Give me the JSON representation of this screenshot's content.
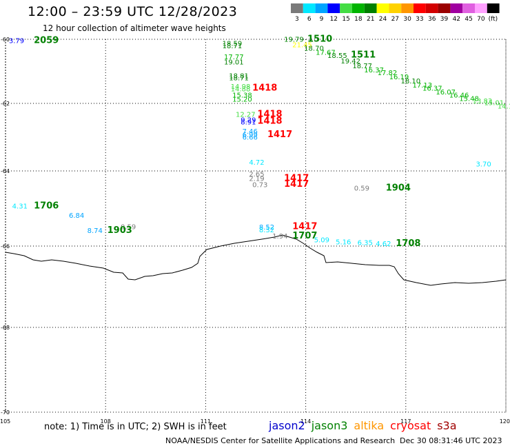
{
  "header": {
    "title": "12:00 – 23:59 UTC 12/28/2023",
    "subtitle": "12 hour collection of altimeter wave heights"
  },
  "color_scale": {
    "unit": "(ft)",
    "bins": [
      {
        "label": "3",
        "color": "#7a7a7a"
      },
      {
        "label": "6",
        "color": "#00e8ff"
      },
      {
        "label": "9",
        "color": "#00a4ff"
      },
      {
        "label": "12",
        "color": "#0000ff"
      },
      {
        "label": "15",
        "color": "#44dd44"
      },
      {
        "label": "18",
        "color": "#00b400"
      },
      {
        "label": "21",
        "color": "#008000"
      },
      {
        "label": "24",
        "color": "#ffff00"
      },
      {
        "label": "27",
        "color": "#ffd200"
      },
      {
        "label": "30",
        "color": "#ff9600"
      },
      {
        "label": "33",
        "color": "#ff0000"
      },
      {
        "label": "36",
        "color": "#d20000"
      },
      {
        "label": "39",
        "color": "#9a0000"
      },
      {
        "label": "42",
        "color": "#a000a0"
      },
      {
        "label": "45",
        "color": "#e060e0"
      },
      {
        "label": "70",
        "color": "#ffa0ff"
      },
      {
        "label": "",
        "color": "#000000"
      }
    ]
  },
  "axes": {
    "lon_ticks": [
      "105",
      "108",
      "111",
      "114",
      "117",
      "120"
    ],
    "lat_ticks": [
      "-60",
      "-62",
      "-64",
      "-66",
      "-68",
      "-70"
    ]
  },
  "observations": [
    {
      "text": "3.79",
      "color": "#0000ff",
      "lon": 105.1,
      "lat": -60.12
    },
    {
      "text": "2059",
      "color": "#008000",
      "lon": 105.85,
      "lat": -60.12,
      "bold": true
    },
    {
      "text": "18.59",
      "color": "#008000",
      "lon": 111.5,
      "lat": -60.2
    },
    {
      "text": "18.71",
      "color": "#008000",
      "lon": 111.5,
      "lat": -60.28
    },
    {
      "text": "17.77",
      "color": "#00b400",
      "lon": 111.55,
      "lat": -60.62
    },
    {
      "text": "19.01",
      "color": "#008000",
      "lon": 111.55,
      "lat": -60.78
    },
    {
      "text": "18.81",
      "color": "#008000",
      "lon": 111.7,
      "lat": -61.22
    },
    {
      "text": "18.71",
      "color": "#008000",
      "lon": 111.7,
      "lat": -61.28
    },
    {
      "text": "14.98",
      "color": "#44dd44",
      "lon": 111.75,
      "lat": -61.55
    },
    {
      "text": "14.88",
      "color": "#44dd44",
      "lon": 111.75,
      "lat": -61.62
    },
    {
      "text": "15.38",
      "color": "#00b400",
      "lon": 111.8,
      "lat": -61.82
    },
    {
      "text": "15.20",
      "color": "#00b400",
      "lon": 111.8,
      "lat": -61.95
    },
    {
      "text": "1418",
      "color": "#ff0000",
      "lon": 112.4,
      "lat": -61.6,
      "bold": true
    },
    {
      "text": "12.27",
      "color": "#44dd44",
      "lon": 111.9,
      "lat": -62.4
    },
    {
      "text": "1418",
      "color": "#ff0000",
      "lon": 112.55,
      "lat": -62.4,
      "bold": true
    },
    {
      "text": "9.29",
      "color": "#0000ff",
      "lon": 112.05,
      "lat": -62.56
    },
    {
      "text": "8.91",
      "color": "#0000ff",
      "lon": 112.05,
      "lat": -62.62
    },
    {
      "text": "1418",
      "color": "#ff0000",
      "lon": 112.55,
      "lat": -62.6,
      "bold": true
    },
    {
      "text": "7.46",
      "color": "#00a4ff",
      "lon": 112.1,
      "lat": -62.9
    },
    {
      "text": "6.99",
      "color": "#00a4ff",
      "lon": 112.1,
      "lat": -63.0
    },
    {
      "text": "6.66",
      "color": "#00a4ff",
      "lon": 112.1,
      "lat": -63.07
    },
    {
      "text": "1417",
      "color": "#ff0000",
      "lon": 112.85,
      "lat": -63.0,
      "bold": true
    },
    {
      "text": "4.72",
      "color": "#00e8ff",
      "lon": 112.3,
      "lat": -63.82
    },
    {
      "text": "2.65",
      "color": "#7a7a7a",
      "lon": 112.3,
      "lat": -64.15
    },
    {
      "text": "2.19",
      "color": "#7a7a7a",
      "lon": 112.3,
      "lat": -64.27
    },
    {
      "text": "1417",
      "color": "#ff0000",
      "lon": 113.35,
      "lat": -64.27,
      "bold": true
    },
    {
      "text": "0.73",
      "color": "#7a7a7a",
      "lon": 112.4,
      "lat": -64.43
    },
    {
      "text": "1417",
      "color": "#ff0000",
      "lon": 113.35,
      "lat": -64.42,
      "bold": true
    },
    {
      "text": "0.59",
      "color": "#7a7a7a",
      "lon": 115.45,
      "lat": -64.52
    },
    {
      "text": "1904",
      "color": "#008000",
      "lon": 116.4,
      "lat": -64.52,
      "bold": true
    },
    {
      "text": "3.70",
      "color": "#00e8ff",
      "lon": 119.1,
      "lat": -63.87
    },
    {
      "text": "4.31",
      "color": "#00e8ff",
      "lon": 105.2,
      "lat": -65.0
    },
    {
      "text": "1706",
      "color": "#008000",
      "lon": 105.85,
      "lat": -65.0,
      "bold": true
    },
    {
      "text": "6.84",
      "color": "#00a4ff",
      "lon": 106.9,
      "lat": -65.25
    },
    {
      "text": "8.74",
      "color": "#00a4ff",
      "lon": 107.45,
      "lat": -65.65
    },
    {
      "text": "0.59",
      "color": "#7a7a7a",
      "lon": 108.45,
      "lat": -65.55
    },
    {
      "text": "1903",
      "color": "#008000",
      "lon": 108.05,
      "lat": -65.65,
      "bold": true
    },
    {
      "text": "8.52",
      "color": "#00a4ff",
      "lon": 112.6,
      "lat": -65.56
    },
    {
      "text": "8.32",
      "color": "#00e8ff",
      "lon": 112.6,
      "lat": -65.63
    },
    {
      "text": "1417",
      "color": "#ff0000",
      "lon": 113.6,
      "lat": -65.55,
      "bold": true
    },
    {
      "text": "1.94",
      "color": "#7a7a7a",
      "lon": 113.0,
      "lat": -65.8
    },
    {
      "text": "1707",
      "color": "#008000",
      "lon": 113.6,
      "lat": -65.8,
      "bold": true
    },
    {
      "text": "5.09",
      "color": "#00e8ff",
      "lon": 114.25,
      "lat": -65.9
    },
    {
      "text": "5.16",
      "color": "#00e8ff",
      "lon": 114.9,
      "lat": -65.95
    },
    {
      "text": "6.35",
      "color": "#00e8ff",
      "lon": 115.55,
      "lat": -65.97
    },
    {
      "text": "4.62",
      "color": "#00e8ff",
      "lon": 116.1,
      "lat": -66.0
    },
    {
      "text": "1708",
      "color": "#008000",
      "lon": 116.7,
      "lat": -66.0,
      "bold": true
    },
    {
      "text": "19.79",
      "color": "#008000",
      "lon": 113.35,
      "lat": -60.08
    },
    {
      "text": "1510",
      "color": "#008000",
      "lon": 114.05,
      "lat": -60.07,
      "bold": true
    },
    {
      "text": "21.45",
      "color": "#ffff00",
      "lon": 113.6,
      "lat": -60.25
    },
    {
      "text": "18.70",
      "color": "#008000",
      "lon": 113.95,
      "lat": -60.35
    },
    {
      "text": "17.67",
      "color": "#00b400",
      "lon": 114.3,
      "lat": -60.48
    },
    {
      "text": "18.55",
      "color": "#008000",
      "lon": 114.65,
      "lat": -60.58
    },
    {
      "text": "1511",
      "color": "#008000",
      "lon": 115.35,
      "lat": -60.57,
      "bold": true
    },
    {
      "text": "19.42",
      "color": "#008000",
      "lon": 115.05,
      "lat": -60.75
    },
    {
      "text": "18.77",
      "color": "#008000",
      "lon": 115.4,
      "lat": -60.9
    },
    {
      "text": "16.37",
      "color": "#00b400",
      "lon": 115.75,
      "lat": -61.03
    },
    {
      "text": "17.82",
      "color": "#00b400",
      "lon": 116.15,
      "lat": -61.12
    },
    {
      "text": "16.19",
      "color": "#00b400",
      "lon": 116.5,
      "lat": -61.25
    },
    {
      "text": "18.10",
      "color": "#008000",
      "lon": 116.85,
      "lat": -61.38
    },
    {
      "text": "17.13",
      "color": "#00b400",
      "lon": 117.2,
      "lat": -61.5
    },
    {
      "text": "16.37",
      "color": "#00b400",
      "lon": 117.5,
      "lat": -61.6
    },
    {
      "text": "16.07",
      "color": "#00b400",
      "lon": 117.9,
      "lat": -61.72
    },
    {
      "text": "16.46",
      "color": "#00b400",
      "lon": 118.3,
      "lat": -61.82
    },
    {
      "text": "15.48",
      "color": "#00b400",
      "lon": 118.6,
      "lat": -61.93
    },
    {
      "text": "13.83",
      "color": "#44dd44",
      "lon": 119.0,
      "lat": -62.0
    },
    {
      "text": "15.01",
      "color": "#44dd44",
      "lon": 119.35,
      "lat": -62.05
    },
    {
      "text": "14.1",
      "color": "#44dd44",
      "lon": 119.75,
      "lat": -62.15
    }
  ],
  "footer": {
    "note": "note:  1) Time is in UTC;  2) SWH is in feet",
    "satellites": [
      {
        "name": "jason2",
        "color": "#0000cc"
      },
      {
        "name": "jason3",
        "color": "#008000"
      },
      {
        "name": "altika",
        "color": "#ff9600"
      },
      {
        "name": "cryosat",
        "color": "#ff0000"
      },
      {
        "name": "s3a",
        "color": "#a00000"
      }
    ],
    "credit": "NOAA/NESDIS Center for Satellite Applications and Research",
    "generated": "Dec 30 08:31:46 UTC 2023"
  }
}
